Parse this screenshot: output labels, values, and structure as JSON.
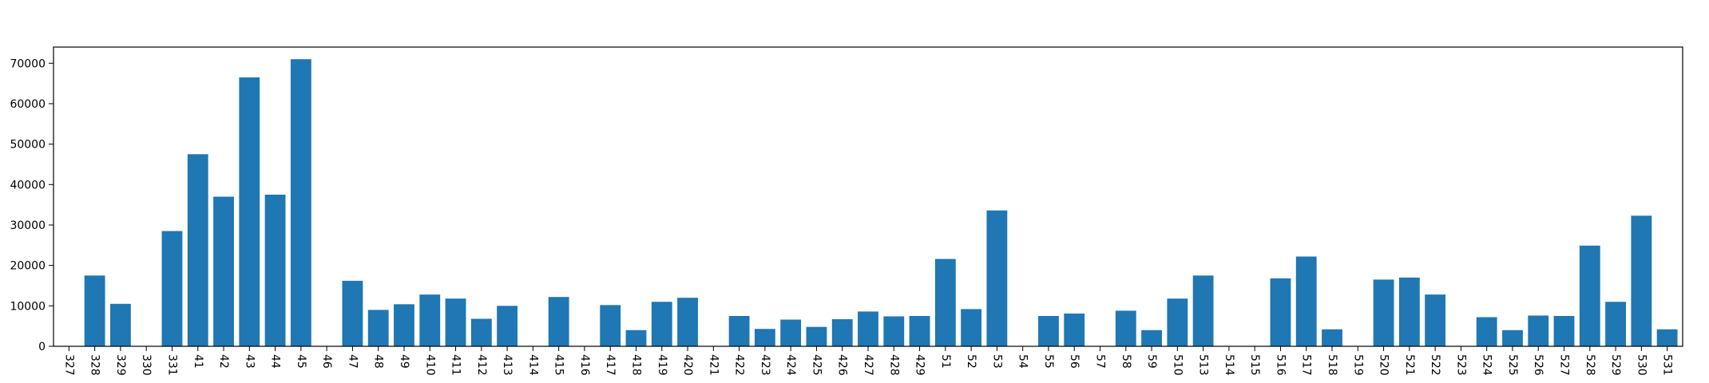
{
  "chart_data": {
    "type": "bar",
    "title": "",
    "xlabel": "",
    "ylabel": "",
    "ylim": [
      0,
      74000
    ],
    "yticks": [
      0,
      10000,
      20000,
      30000,
      40000,
      50000,
      60000,
      70000
    ],
    "grid": false,
    "bar_color": "#1f77b4",
    "categories": [
      "327",
      "328",
      "329",
      "330",
      "331",
      "41",
      "42",
      "43",
      "44",
      "45",
      "46",
      "47",
      "48",
      "49",
      "410",
      "411",
      "412",
      "413",
      "414",
      "415",
      "416",
      "417",
      "418",
      "419",
      "420",
      "421",
      "422",
      "423",
      "424",
      "425",
      "426",
      "427",
      "428",
      "429",
      "51",
      "52",
      "53",
      "54",
      "55",
      "56",
      "57",
      "58",
      "59",
      "510",
      "513",
      "514",
      "515",
      "516",
      "517",
      "518",
      "519",
      "520",
      "521",
      "522",
      "523",
      "524",
      "525",
      "526",
      "527",
      "528",
      "529",
      "530",
      "531"
    ],
    "values": [
      0,
      17500,
      10500,
      0,
      28500,
      47500,
      37000,
      66500,
      37500,
      71000,
      0,
      16200,
      9000,
      10400,
      12800,
      11800,
      6800,
      10000,
      0,
      12200,
      0,
      10200,
      4000,
      11000,
      12000,
      0,
      7500,
      4300,
      6600,
      4800,
      6700,
      8600,
      7400,
      7500,
      21600,
      9200,
      33600,
      0,
      7500,
      8100,
      0,
      8800,
      4000,
      11800,
      17500,
      0,
      0,
      16800,
      22200,
      4200,
      0,
      16500,
      17000,
      12800,
      0,
      7200,
      4000,
      7600,
      7500,
      24900,
      11000,
      32300,
      4200
    ]
  }
}
